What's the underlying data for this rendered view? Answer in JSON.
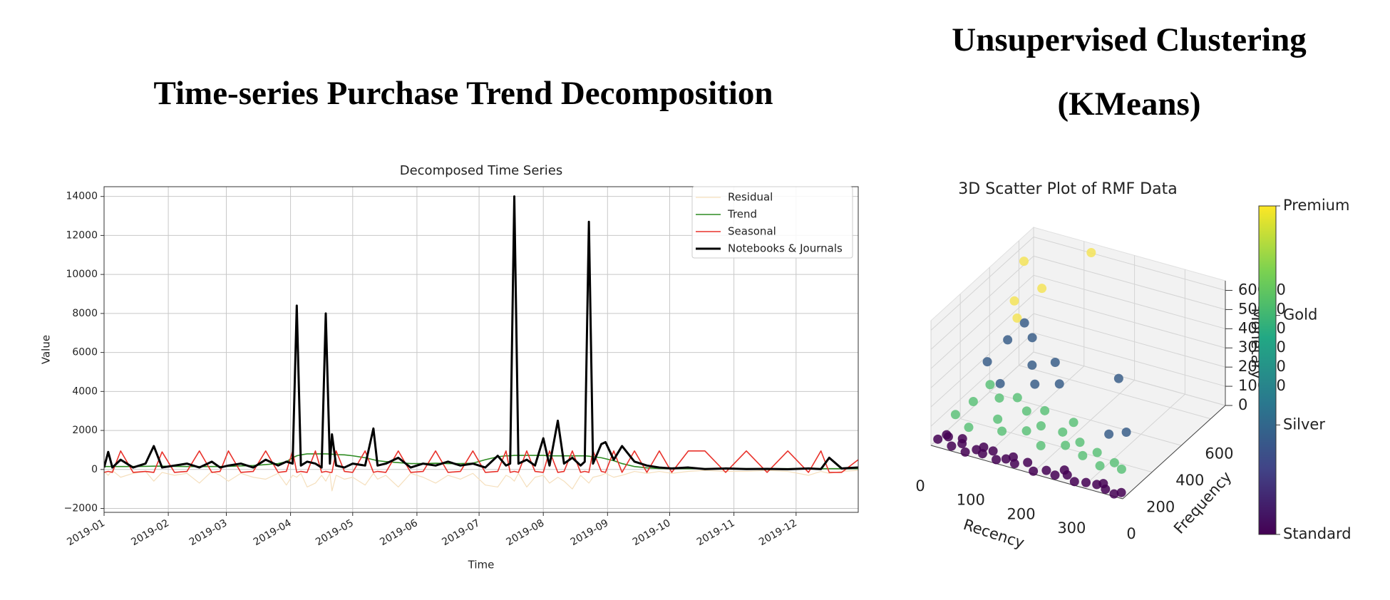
{
  "headings": [
    "Time-series Purchase Trend Decomposition",
    "Unsupervised Clustering (KMeans)"
  ],
  "chart_data": [
    {
      "type": "line",
      "title": "Decomposed Time Series",
      "xlabel": "Time",
      "ylabel": "Value",
      "xlim": [
        0,
        364
      ],
      "xticks": [
        {
          "value": 0,
          "label": "2019-01"
        },
        {
          "value": 31,
          "label": "2019-02"
        },
        {
          "value": 59,
          "label": "2019-03"
        },
        {
          "value": 90,
          "label": "2019-04"
        },
        {
          "value": 120,
          "label": "2019-05"
        },
        {
          "value": 151,
          "label": "2019-06"
        },
        {
          "value": 181,
          "label": "2019-07"
        },
        {
          "value": 212,
          "label": "2019-08"
        },
        {
          "value": 243,
          "label": "2019-09"
        },
        {
          "value": 273,
          "label": "2019-10"
        },
        {
          "value": 304,
          "label": "2019-11"
        },
        {
          "value": 334,
          "label": "2019-12"
        }
      ],
      "ylim": [
        -2200,
        14500
      ],
      "yticks": [
        {
          "value": -2000,
          "label": "−2000"
        },
        0,
        2000,
        4000,
        6000,
        8000,
        10000,
        12000,
        14000
      ],
      "grid": true,
      "legend": "upper right",
      "x": [
        0,
        2,
        4,
        8,
        14,
        20,
        24,
        28,
        34,
        40,
        46,
        52,
        56,
        60,
        66,
        72,
        78,
        84,
        88,
        91,
        93,
        95,
        98,
        102,
        105,
        107,
        109,
        110,
        112,
        116,
        120,
        126,
        130,
        132,
        136,
        142,
        148,
        154,
        160,
        166,
        172,
        178,
        184,
        190,
        194,
        196,
        198,
        200,
        204,
        208,
        212,
        215,
        219,
        222,
        226,
        230,
        232,
        234,
        236,
        240,
        242,
        246,
        250,
        256,
        262,
        268,
        274,
        282,
        290,
        300,
        310,
        320,
        330,
        340,
        346,
        350,
        356,
        364
      ],
      "series": [
        {
          "name": "Residual",
          "color": "#f5dfbd",
          "width": 1.2,
          "values": [
            -100,
            -300,
            -50,
            -400,
            -200,
            -100,
            -600,
            -150,
            -300,
            -200,
            -700,
            -100,
            -300,
            -600,
            -200,
            -400,
            -500,
            -200,
            -800,
            -300,
            -400,
            -200,
            -900,
            -700,
            -300,
            -600,
            -200,
            -1100,
            -300,
            -500,
            -400,
            -800,
            -200,
            -500,
            -300,
            -900,
            -200,
            -400,
            -700,
            -300,
            -500,
            -200,
            -800,
            -900,
            -300,
            -400,
            -600,
            -200,
            -900,
            -400,
            -300,
            -700,
            -400,
            -600,
            -1000,
            -300,
            -500,
            -700,
            -400,
            -300,
            -200,
            -400,
            -300,
            -100,
            -200,
            -100,
            -200,
            -100,
            -50,
            -100,
            -100,
            -50,
            -100,
            -300,
            -100,
            -200,
            -100,
            -50
          ]
        },
        {
          "name": "Trend",
          "color": "#2e8b22",
          "width": 1.6,
          "values": [
            150,
            150,
            150,
            150,
            150,
            160,
            170,
            170,
            160,
            150,
            150,
            150,
            150,
            160,
            180,
            200,
            250,
            300,
            400,
            600,
            700,
            750,
            800,
            800,
            800,
            800,
            790,
            780,
            760,
            750,
            700,
            600,
            500,
            450,
            400,
            350,
            300,
            300,
            320,
            300,
            300,
            320,
            500,
            650,
            700,
            700,
            720,
            720,
            720,
            720,
            720,
            700,
            700,
            700,
            700,
            700,
            700,
            680,
            650,
            600,
            550,
            450,
            300,
            150,
            80,
            50,
            40,
            40,
            40,
            40,
            40,
            40,
            40,
            40,
            40,
            40,
            40,
            40
          ]
        },
        {
          "name": "Seasonal",
          "color": "#e8322b",
          "width": 1.6,
          "values": [
            -150,
            -100,
            -150,
            950,
            -150,
            -100,
            -150,
            900,
            -150,
            -100,
            950,
            -150,
            -100,
            950,
            -150,
            -100,
            950,
            -150,
            -100,
            950,
            -150,
            -100,
            -150,
            950,
            -150,
            -100,
            -150,
            -150,
            950,
            -100,
            -150,
            950,
            -150,
            -100,
            -150,
            950,
            -150,
            -100,
            950,
            -150,
            -100,
            950,
            -150,
            -100,
            950,
            -150,
            -100,
            -150,
            950,
            -100,
            -150,
            950,
            -150,
            -100,
            950,
            -150,
            -100,
            -150,
            950,
            -100,
            -150,
            950,
            -150,
            950,
            -150,
            950,
            -150,
            950,
            950,
            -150,
            950,
            -150,
            950,
            -150,
            950,
            -150,
            -150,
            500
          ]
        },
        {
          "name": "Notebooks & Journals",
          "color": "#000000",
          "width": 3,
          "values": [
            100,
            900,
            100,
            500,
            100,
            300,
            1200,
            100,
            200,
            300,
            100,
            400,
            100,
            200,
            300,
            100,
            500,
            200,
            400,
            300,
            8400,
            200,
            400,
            300,
            100,
            8000,
            300,
            1800,
            200,
            100,
            300,
            200,
            2100,
            200,
            300,
            600,
            100,
            300,
            200,
            400,
            200,
            300,
            100,
            700,
            200,
            300,
            14000,
            300,
            500,
            200,
            1600,
            200,
            2500,
            300,
            600,
            200,
            400,
            12700,
            300,
            1300,
            1400,
            500,
            1200,
            400,
            200,
            100,
            50,
            100,
            20,
            50,
            20,
            30,
            10,
            50,
            20,
            600,
            50,
            100
          ]
        }
      ]
    },
    {
      "type": "scatter3d",
      "title": "3D Scatter Plot of RMF Data",
      "xlabel": "Recency",
      "ylabel": "Frequency",
      "zlabel": "Monetary",
      "xlim": [
        0,
        380
      ],
      "ylim": [
        0,
        700
      ],
      "zlim": [
        0,
        65000
      ],
      "xticks": [
        0,
        100,
        200,
        300
      ],
      "yticks": [
        0,
        200,
        400,
        600
      ],
      "zticks": [
        0,
        10000,
        20000,
        30000,
        40000,
        50000,
        60000
      ],
      "colorbar": {
        "lim": [
          0,
          3
        ],
        "ticks": [
          {
            "value": 0,
            "label": "Standard"
          },
          {
            "value": 1,
            "label": "Silver"
          },
          {
            "value": 2,
            "label": "Gold"
          },
          {
            "value": 3,
            "label": "Premium"
          }
        ]
      },
      "series": [
        {
          "cluster": 0,
          "color": "#440154",
          "x": [
            5,
            20,
            35,
            50,
            65,
            80,
            95,
            110,
            125,
            140,
            160,
            180,
            200,
            220,
            240,
            260,
            280,
            300,
            320,
            340,
            360,
            370,
            15,
            45,
            90,
            150,
            250,
            330
          ],
          "y": [
            30,
            50,
            20,
            40,
            10,
            35,
            25,
            45,
            15,
            30,
            20,
            40,
            10,
            30,
            20,
            35,
            15,
            25,
            30,
            20,
            10,
            25,
            55,
            60,
            50,
            45,
            50,
            40
          ],
          "z": [
            1500,
            2500,
            800,
            1800,
            600,
            1200,
            900,
            2000,
            700,
            1100,
            800,
            1500,
            500,
            1000,
            700,
            1200,
            600,
            900,
            1000,
            700,
            400,
            800,
            2800,
            2600,
            2200,
            1800,
            2000,
            1500
          ]
        },
        {
          "cluster": 1,
          "color": "#3b5f8a",
          "x": [
            10,
            30,
            50,
            70,
            90,
            110,
            130,
            150,
            40,
            250,
            280,
            300
          ],
          "y": [
            350,
            420,
            300,
            450,
            380,
            330,
            400,
            360,
            500,
            420,
            250,
            300
          ],
          "z": [
            20000,
            28000,
            15000,
            30000,
            22000,
            17000,
            25000,
            18000,
            32000,
            24000,
            9000,
            8000
          ]
        },
        {
          "cluster": 2,
          "color": "#5ec27a",
          "x": [
            5,
            20,
            40,
            60,
            80,
            100,
            120,
            140,
            160,
            180,
            200,
            220,
            240,
            260,
            280,
            300,
            320,
            340,
            30,
            90,
            150,
            210
          ],
          "y": [
            150,
            220,
            120,
            260,
            180,
            140,
            240,
            170,
            200,
            130,
            210,
            160,
            190,
            140,
            170,
            120,
            150,
            130,
            300,
            280,
            260,
            250
          ],
          "z": [
            6000,
            9000,
            4000,
            11000,
            7000,
            5000,
            10000,
            6000,
            8000,
            4000,
            7000,
            5000,
            6000,
            4000,
            5000,
            3000,
            4000,
            3500,
            13000,
            12000,
            11000,
            10000
          ]
        },
        {
          "cluster": 3,
          "color": "#f5e45a",
          "x": [
            10,
            20,
            40,
            120,
            60
          ],
          "y": [
            600,
            500,
            450,
            680,
            550
          ],
          "z": [
            55000,
            42000,
            38000,
            62000,
            48000
          ]
        }
      ]
    }
  ]
}
